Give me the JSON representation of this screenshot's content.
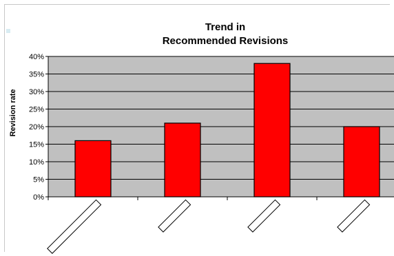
{
  "chart_data": {
    "type": "bar",
    "title": [
      "Trend in",
      "Recommended Revisions"
    ],
    "xlabel": "",
    "ylabel": "Revision rate",
    "categories": [
      "",
      "",
      "",
      ""
    ],
    "values": [
      16,
      21,
      38,
      20
    ],
    "y_ticks": [
      "0%",
      "5%",
      "10%",
      "15%",
      "20%",
      "25%",
      "30%",
      "35%",
      "40%"
    ],
    "ylim": [
      0,
      40
    ],
    "grid": true,
    "legend": "none",
    "colors": {
      "bar_fill": "#ff0000",
      "bar_stroke": "#000000",
      "plot_background": "#c0c0c0",
      "gridline": "#000000",
      "marker": "#d8ecf2"
    }
  }
}
